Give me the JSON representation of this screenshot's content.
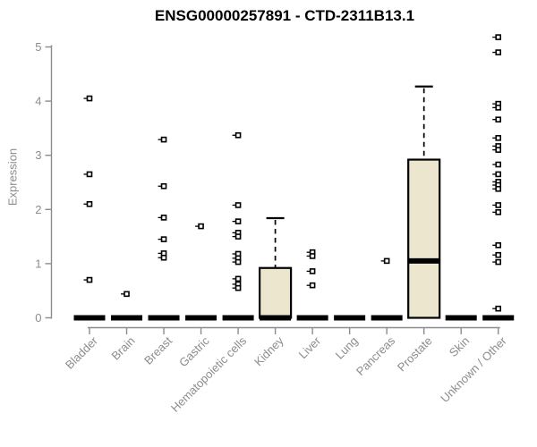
{
  "title": "ENSG00000257891 - CTD-2311B13.1",
  "chart_data": {
    "type": "boxplot",
    "title": "ENSG00000257891 - CTD-2311B13.1",
    "xlabel": "",
    "ylabel": "Expression",
    "ylim": [
      0,
      5
    ],
    "yticks": [
      0,
      1,
      2,
      3,
      4,
      5
    ],
    "grid": false,
    "legend": "none",
    "colors": {
      "box_fill": "#ece6ce",
      "box_stroke": "#000000",
      "median": "#000000",
      "whisker": "#000000",
      "outlier_stroke": "#000000",
      "axis": "#8c8c8c",
      "tick_label": "#8c8c8c",
      "title": "#000000",
      "background": "#ffffff"
    },
    "categories": [
      "Bladder",
      "Brain",
      "Breast",
      "Gastric",
      "Hematopoietic cells",
      "Kidney",
      "Liver",
      "Lung",
      "Pancreas",
      "Prostate",
      "Skin",
      "Unknown / Other"
    ],
    "series": [
      {
        "category": "Bladder",
        "whisker_low": 0,
        "q1": 0,
        "median": 0,
        "q3": 0,
        "whisker_high": 0,
        "outliers": [
          4.05,
          2.65,
          2.1,
          0.7
        ]
      },
      {
        "category": "Brain",
        "whisker_low": 0,
        "q1": 0,
        "median": 0,
        "q3": 0,
        "whisker_high": 0,
        "outliers": [
          0.44
        ]
      },
      {
        "category": "Breast",
        "whisker_low": 0,
        "q1": 0,
        "median": 0,
        "q3": 0,
        "whisker_high": 0,
        "outliers": [
          3.29,
          2.43,
          1.85,
          1.45,
          1.19,
          1.11
        ]
      },
      {
        "category": "Gastric",
        "whisker_low": 0,
        "q1": 0,
        "median": 0,
        "q3": 0,
        "whisker_high": 0,
        "outliers": [
          1.69
        ]
      },
      {
        "category": "Hematopoietic cells",
        "whisker_low": 0,
        "q1": 0,
        "median": 0,
        "q3": 0,
        "whisker_high": 0,
        "outliers": [
          3.37,
          2.08,
          1.78,
          1.57,
          1.5,
          1.18,
          1.1,
          1.03,
          0.72,
          0.62,
          0.55
        ]
      },
      {
        "category": "Kidney",
        "whisker_low": 0,
        "q1": 0,
        "median": 0,
        "q3": 0.92,
        "whisker_high": 1.84,
        "outliers": []
      },
      {
        "category": "Liver",
        "whisker_low": 0,
        "q1": 0,
        "median": 0,
        "q3": 0,
        "whisker_high": 0,
        "outliers": [
          1.21,
          1.14,
          0.86,
          0.6
        ]
      },
      {
        "category": "Lung",
        "whisker_low": 0,
        "q1": 0,
        "median": 0,
        "q3": 0,
        "whisker_high": 0,
        "outliers": []
      },
      {
        "category": "Pancreas",
        "whisker_low": 0,
        "q1": 0,
        "median": 0,
        "q3": 0,
        "whisker_high": 0,
        "outliers": [
          1.05
        ]
      },
      {
        "category": "Prostate",
        "whisker_low": 0,
        "q1": 0,
        "median": 1.05,
        "q3": 2.92,
        "whisker_high": 4.27,
        "outliers": []
      },
      {
        "category": "Skin",
        "whisker_low": 0,
        "q1": 0,
        "median": 0,
        "q3": 0,
        "whisker_high": 0,
        "outliers": []
      },
      {
        "category": "Unknown / Other",
        "whisker_low": 0,
        "q1": 0,
        "median": 0,
        "q3": 0,
        "whisker_high": 0,
        "outliers": [
          5.18,
          4.9,
          3.95,
          3.88,
          3.66,
          3.32,
          3.17,
          3.1,
          2.83,
          2.65,
          2.51,
          2.45,
          2.38,
          2.08,
          1.95,
          1.34,
          1.16,
          1.03,
          0.17
        ]
      }
    ]
  }
}
